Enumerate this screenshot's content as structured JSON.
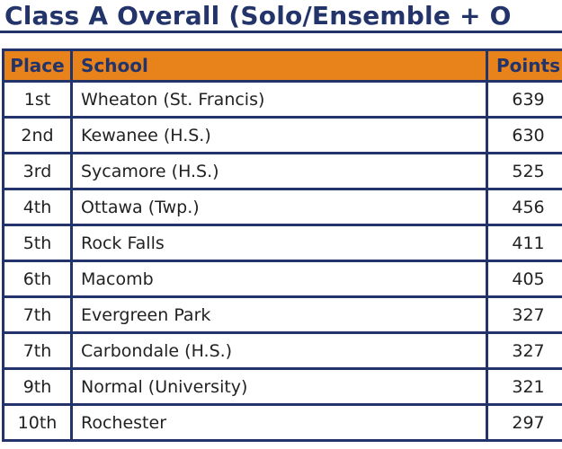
{
  "page": {
    "title": "Class A Overall (Solo/Ensemble + O"
  },
  "colors": {
    "header_orange": "#E8831C",
    "navy": "#22346A",
    "row_text": "#222222",
    "row_background": "#FFFFFF"
  },
  "table": {
    "headers": {
      "place": "Place",
      "school": "School",
      "points": "Points"
    },
    "rows": [
      {
        "place": "1st",
        "school": "Wheaton (St. Francis)",
        "points": "639"
      },
      {
        "place": "2nd",
        "school": "Kewanee (H.S.)",
        "points": "630"
      },
      {
        "place": "3rd",
        "school": "Sycamore (H.S.)",
        "points": "525"
      },
      {
        "place": "4th",
        "school": "Ottawa (Twp.)",
        "points": "456"
      },
      {
        "place": "5th",
        "school": "Rock Falls",
        "points": "411"
      },
      {
        "place": "6th",
        "school": "Macomb",
        "points": "405"
      },
      {
        "place": "7th",
        "school": "Evergreen Park",
        "points": "327"
      },
      {
        "place": "7th",
        "school": "Carbondale (H.S.)",
        "points": "327"
      },
      {
        "place": "9th",
        "school": "Normal (University)",
        "points": "321"
      },
      {
        "place": "10th",
        "school": "Rochester",
        "points": "297"
      }
    ]
  }
}
